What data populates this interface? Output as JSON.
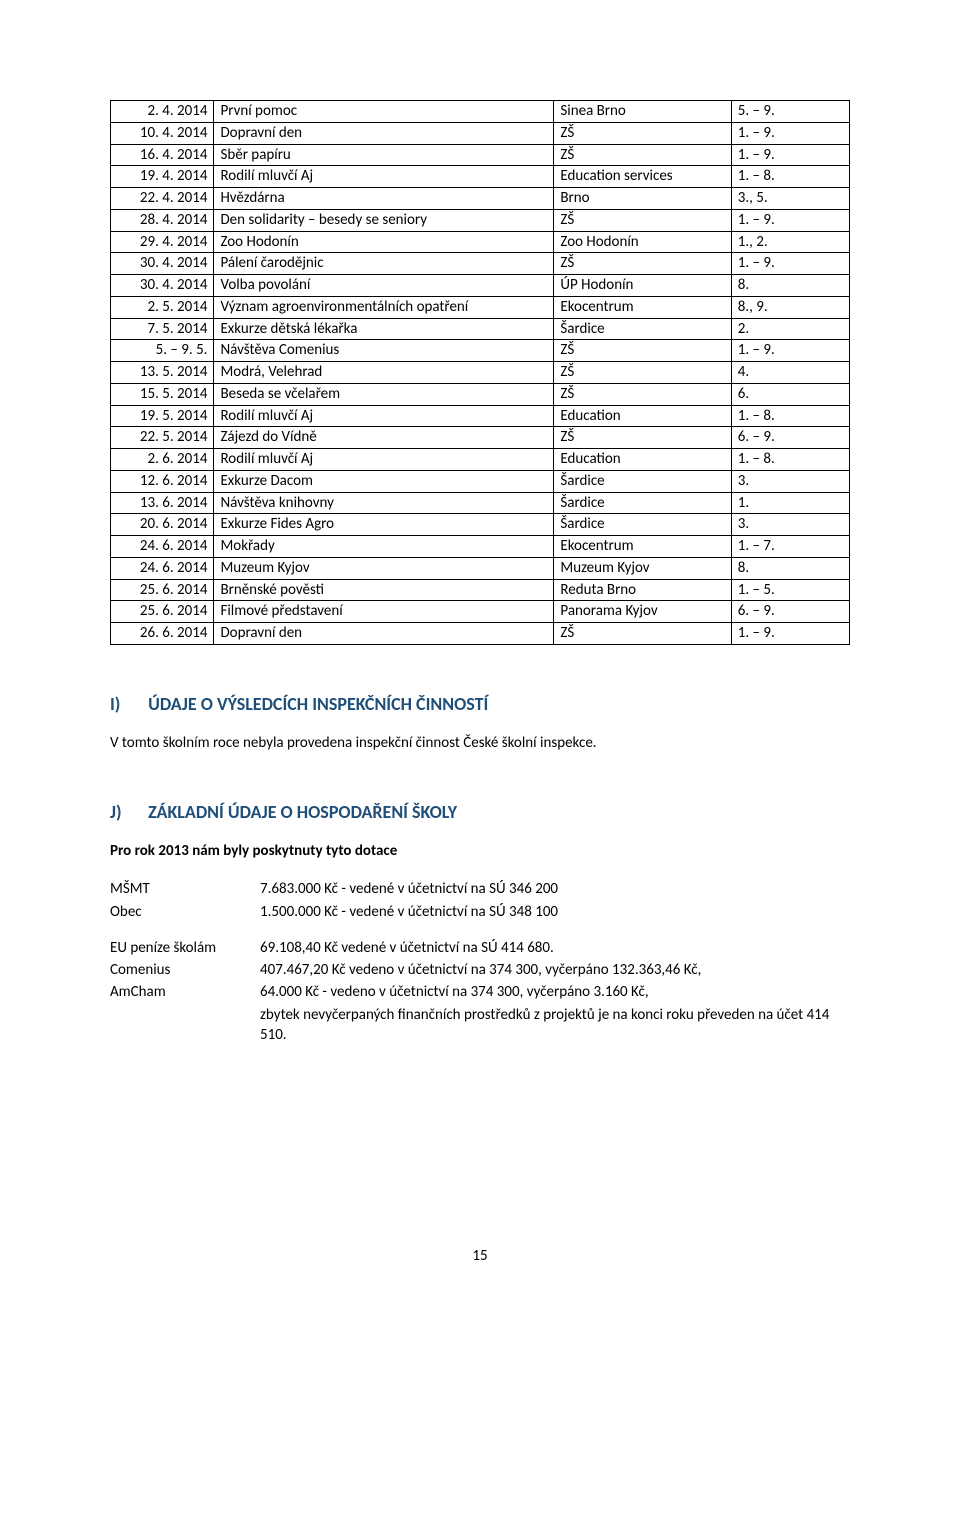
{
  "table": {
    "columns": [
      "date",
      "event",
      "place",
      "grade"
    ],
    "col_widths_pct": [
      14,
      46,
      24,
      16
    ],
    "col_align": [
      "right",
      "left",
      "left",
      "left"
    ],
    "border_color": "#000000",
    "font_size_pt": 11,
    "rows": [
      [
        "2. 4. 2014",
        "První pomoc",
        "Sinea Brno",
        "5. – 9."
      ],
      [
        "10. 4. 2014",
        "Dopravní den",
        "ZŠ",
        "1. – 9."
      ],
      [
        "16. 4. 2014",
        "Sběr papíru",
        "ZŠ",
        "1. – 9."
      ],
      [
        "19. 4. 2014",
        "Rodilí mluvčí Aj",
        "Education services",
        "1. – 8."
      ],
      [
        "22. 4. 2014",
        "Hvězdárna",
        "Brno",
        "3., 5."
      ],
      [
        "28. 4. 2014",
        "Den solidarity – besedy se seniory",
        "ZŠ",
        "1. – 9."
      ],
      [
        "29. 4. 2014",
        "Zoo Hodonín",
        "Zoo Hodonín",
        "1., 2."
      ],
      [
        "30. 4. 2014",
        "Pálení čarodějnic",
        "ZŠ",
        "1. – 9."
      ],
      [
        "30. 4. 2014",
        "Volba povolání",
        "ÚP Hodonín",
        "8."
      ],
      [
        "2. 5. 2014",
        "Význam agroenvironmentálních opatření",
        "Ekocentrum",
        "8., 9."
      ],
      [
        "7. 5. 2014",
        "Exkurze dětská lékařka",
        "Šardice",
        "2."
      ],
      [
        "5. – 9. 5.",
        "Návštěva Comenius",
        "ZŠ",
        "1. – 9."
      ],
      [
        "13. 5. 2014",
        "Modrá, Velehrad",
        "ZŠ",
        "4."
      ],
      [
        "15. 5. 2014",
        "Beseda se včelařem",
        "ZŠ",
        "6."
      ],
      [
        "19. 5. 2014",
        "Rodilí mluvčí Aj",
        "Education",
        "1. – 8."
      ],
      [
        "22. 5. 2014",
        "Zájezd do Vídně",
        "ZŠ",
        "6. – 9."
      ],
      [
        "2. 6. 2014",
        "Rodilí mluvčí Aj",
        "Education",
        "1. – 8."
      ],
      [
        "12. 6. 2014",
        "Exkurze Dacom",
        "Šardice",
        "3."
      ],
      [
        "13. 6. 2014",
        "Návštěva knihovny",
        "Šardice",
        "1."
      ],
      [
        "20. 6. 2014",
        "Exkurze Fides Agro",
        "Šardice",
        "3."
      ],
      [
        "24. 6. 2014",
        "Mokřady",
        "Ekocentrum",
        "1. – 7."
      ],
      [
        "24. 6. 2014",
        "Muzeum Kyjov",
        "Muzeum Kyjov",
        "8."
      ],
      [
        "25. 6. 2014",
        "Brněnské pověsti",
        "Reduta Brno",
        "1. – 5."
      ],
      [
        "25. 6. 2014",
        "Filmové představení",
        "Panorama Kyjov",
        "6. – 9."
      ],
      [
        "26. 6. 2014",
        "Dopravní den",
        "ZŠ",
        "1. – 9."
      ]
    ]
  },
  "section_i": {
    "label": "I)",
    "title": "ÚDAJE O VÝSLEDCÍCH INSPEKČNÍCH ČINNOSTÍ",
    "text": "V tomto školním roce nebyla provedena inspekční činnost České školní inspekce."
  },
  "section_j": {
    "label": "J)",
    "title": "ZÁKLADNÍ ÚDAJE O HOSPODAŘENÍ ŠKOLY",
    "subtitle": "Pro rok 2013 nám byly poskytnuty tyto dotace",
    "funding1": [
      {
        "k": "MŠMT",
        "v": "7.683.000 Kč - vedené v účetnictví na SÚ 346 200"
      },
      {
        "k": "Obec",
        "v": "1.500.000 Kč  - vedené v účetnictví na SÚ 348 100"
      }
    ],
    "funding2": [
      {
        "k": "EU peníze školám",
        "v": "69.108,40 Kč vedené v účetnictví na SÚ 414 680."
      },
      {
        "k": "Comenius",
        "v": "407.467,20 Kč vedeno v účetnictví na 374 300, vyčerpáno 132.363,46 Kč,"
      },
      {
        "k": "AmCham",
        "v": "64.000 Kč - vedeno v účetnictví na 374 300, vyčerpáno 3.160 Kč,"
      }
    ],
    "funding2_tail": "zbytek nevyčerpaných finančních prostředků z projektů je na konci roku převeden na účet 414 510."
  },
  "heading_color": "#1f4e79",
  "page_number": "15"
}
